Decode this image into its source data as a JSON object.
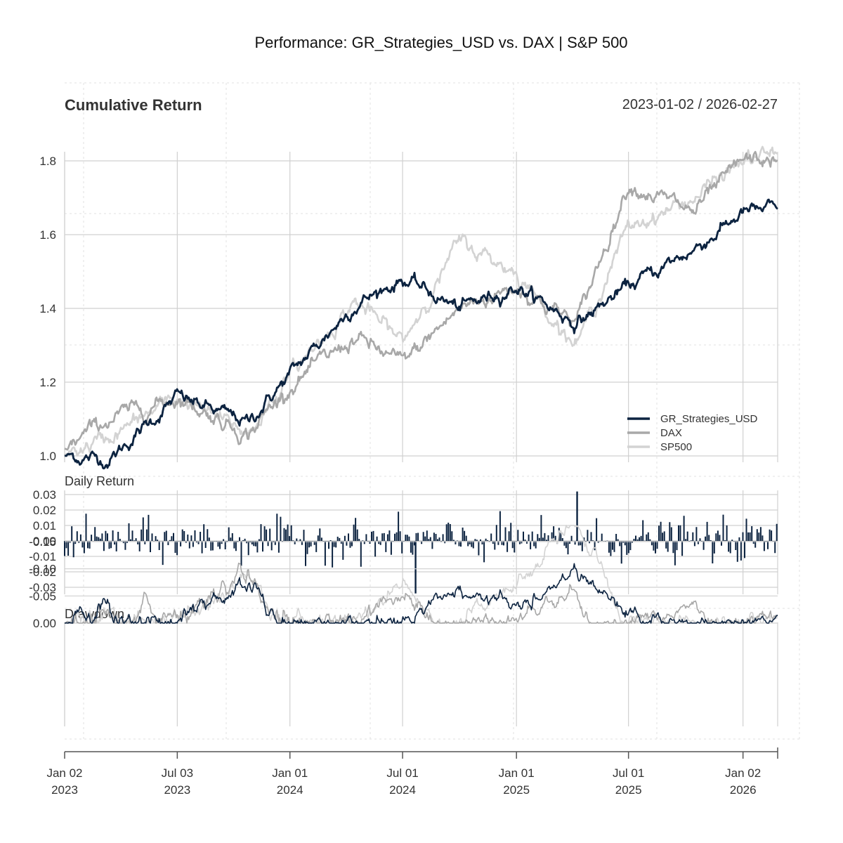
{
  "figure_title": "Performance: GR_Strategies_USD vs. DAX | S&P 500",
  "date_range": "2023-01-02 / 2026-02-27",
  "colors": {
    "strategy": "#0c2340",
    "dax": "#a8a8a8",
    "sp500": "#d3d3d3"
  },
  "chart_data": [
    {
      "type": "line",
      "title": "Cumulative Return",
      "x": [
        "2023-01-02",
        "2023-03-15",
        "2023-07-03",
        "2023-10-25",
        "2024-01-01",
        "2024-04-15",
        "2024-07-01",
        "2024-10-01",
        "2025-01-01",
        "2025-04-08",
        "2025-07-01",
        "2025-10-15",
        "2026-01-02",
        "2026-02-27"
      ],
      "series": [
        {
          "name": "GR_Strategies_USD",
          "values": [
            1.0,
            0.99,
            1.16,
            1.09,
            1.22,
            1.41,
            1.48,
            1.4,
            1.46,
            1.36,
            1.46,
            1.56,
            1.66,
            1.67
          ]
        },
        {
          "name": "DAX",
          "values": [
            1.02,
            1.1,
            1.16,
            1.06,
            1.19,
            1.32,
            1.25,
            1.4,
            1.46,
            1.36,
            1.74,
            1.66,
            1.8,
            1.8
          ]
        },
        {
          "name": "SP500",
          "values": [
            1.0,
            1.05,
            1.16,
            1.06,
            1.22,
            1.42,
            1.31,
            1.58,
            1.5,
            1.3,
            1.62,
            1.7,
            1.8,
            1.82
          ]
        }
      ],
      "ylim": [
        0.99,
        1.83
      ],
      "yticks": [
        "1.0",
        "1.2",
        "1.4",
        "1.6",
        "1.8"
      ],
      "legend": [
        "GR_Strategies_USD",
        "DAX",
        "SP500"
      ],
      "legend_position": "bottom-right"
    },
    {
      "type": "bar",
      "title": "Daily Return",
      "series": [
        {
          "name": "GR_Strategies_USD",
          "range": [
            -0.034,
            0.032
          ]
        }
      ],
      "ylim": [
        -0.034,
        0.033
      ],
      "yticks": [
        "0.03",
        "0.02",
        "0.01",
        "0.00",
        "-0.01",
        "-0.02",
        "-0.03"
      ]
    },
    {
      "type": "line",
      "title": "Drawdown",
      "series": [
        {
          "name": "GR_Strategies_USD",
          "min": -0.12
        },
        {
          "name": "DAX",
          "min": -0.155
        },
        {
          "name": "SP500",
          "min": -0.18
        }
      ],
      "ylim": [
        -0.19,
        0.0
      ],
      "yticks": [
        "0.00",
        "-0.05",
        "-0.10",
        "-0.15"
      ]
    }
  ],
  "x_axis": {
    "ticks": [
      {
        "month": "Jan 02",
        "year": "2023"
      },
      {
        "month": "Jul 03",
        "year": "2023"
      },
      {
        "month": "Jan 01",
        "year": "2024"
      },
      {
        "month": "Jul 01",
        "year": "2024"
      },
      {
        "month": "Jan 01",
        "year": "2025"
      },
      {
        "month": "Jul 01",
        "year": "2025"
      },
      {
        "month": "Jan 02",
        "year": "2026"
      }
    ]
  }
}
